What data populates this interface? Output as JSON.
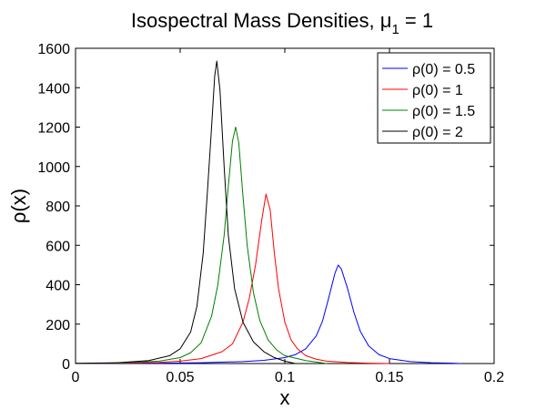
{
  "chart_data": {
    "type": "line",
    "title": "Isospectral Mass Densities, μ",
    "title_subscript": "1",
    "title_suffix": " = 1",
    "xlabel": "x",
    "ylabel": "ρ(x)",
    "xlim": [
      0,
      0.2
    ],
    "ylim": [
      0,
      1600
    ],
    "x_ticks": [
      0,
      0.05,
      0.1,
      0.15,
      0.2
    ],
    "x_tick_labels": [
      "0",
      "0.05",
      "0.1",
      "0.15",
      "0.2"
    ],
    "y_ticks": [
      0,
      200,
      400,
      600,
      800,
      1000,
      1200,
      1400,
      1600
    ],
    "y_tick_labels": [
      "0",
      "200",
      "400",
      "600",
      "800",
      "1000",
      "1200",
      "1400",
      "1600"
    ],
    "grid": false,
    "legend_position": "top-right",
    "series": [
      {
        "name": "ρ(0) = 0.5",
        "color": "#0000ff",
        "x": [
          0,
          0.02,
          0.04,
          0.06,
          0.08,
          0.09,
          0.1,
          0.105,
          0.11,
          0.115,
          0.118,
          0.121,
          0.124,
          0.1255,
          0.127,
          0.13,
          0.133,
          0.136,
          0.14,
          0.145,
          0.15,
          0.16,
          0.17,
          0.18,
          0.184
        ],
        "y": [
          0.3,
          1,
          2,
          4,
          10,
          16,
          30,
          45,
          75,
          140,
          215,
          335,
          460,
          500,
          480,
          380,
          260,
          165,
          90,
          45,
          25,
          10,
          4,
          1.5,
          0
        ]
      },
      {
        "name": "ρ(0) = 1",
        "color": "#ff0000",
        "x": [
          0,
          0.02,
          0.04,
          0.05,
          0.06,
          0.07,
          0.075,
          0.08,
          0.083,
          0.086,
          0.089,
          0.091,
          0.093,
          0.095,
          0.097,
          0.1,
          0.103,
          0.106,
          0.11,
          0.115,
          0.12,
          0.13,
          0.14,
          0.15
        ],
        "y": [
          0.5,
          2,
          6,
          12,
          25,
          60,
          100,
          210,
          330,
          500,
          730,
          860,
          780,
          560,
          380,
          210,
          120,
          75,
          40,
          22,
          12,
          5,
          2,
          0
        ]
      },
      {
        "name": "ρ(0) = 1.5",
        "color": "#008000",
        "x": [
          0,
          0.02,
          0.04,
          0.05,
          0.055,
          0.06,
          0.065,
          0.068,
          0.071,
          0.073,
          0.075,
          0.0765,
          0.078,
          0.08,
          0.082,
          0.085,
          0.088,
          0.092,
          0.096,
          0.1,
          0.11,
          0.12
        ],
        "y": [
          0.5,
          3,
          12,
          30,
          55,
          105,
          240,
          400,
          650,
          900,
          1130,
          1200,
          1120,
          850,
          600,
          360,
          220,
          120,
          70,
          40,
          15,
          0
        ]
      },
      {
        "name": "ρ(0) = 2",
        "color": "#000000",
        "x": [
          0,
          0.02,
          0.035,
          0.045,
          0.05,
          0.055,
          0.058,
          0.061,
          0.063,
          0.065,
          0.0665,
          0.0675,
          0.069,
          0.071,
          0.073,
          0.076,
          0.08,
          0.085,
          0.09,
          0.095,
          0.1,
          0.105
        ],
        "y": [
          0.5,
          4,
          15,
          40,
          75,
          160,
          290,
          560,
          870,
          1200,
          1460,
          1535,
          1390,
          1000,
          650,
          380,
          210,
          110,
          60,
          30,
          12,
          0
        ]
      }
    ]
  }
}
